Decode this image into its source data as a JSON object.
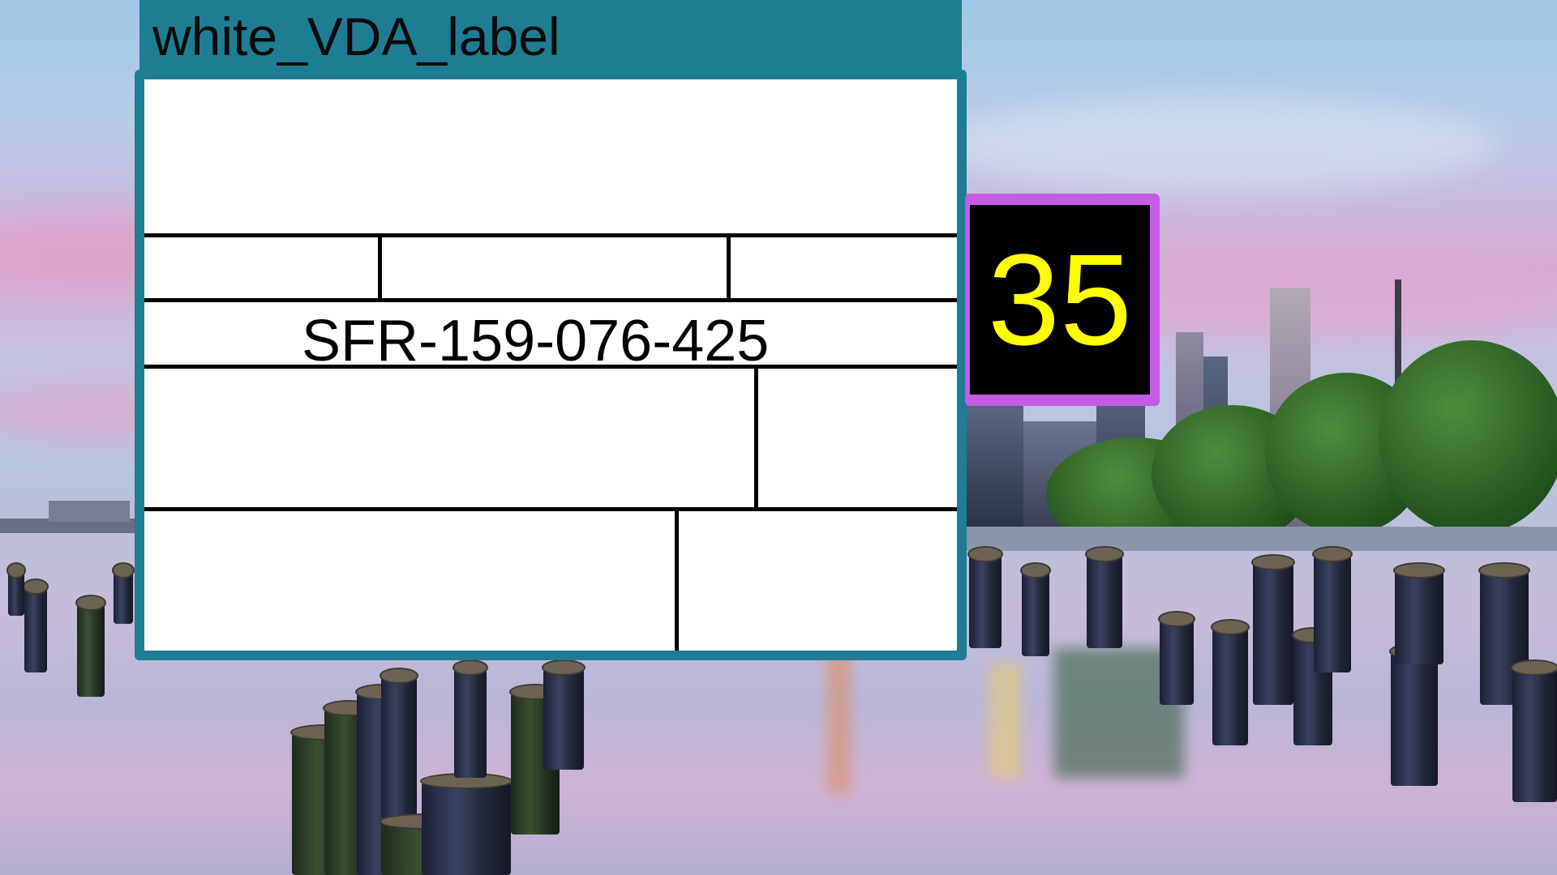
{
  "window": {
    "title": "white_VDA_label"
  },
  "label": {
    "part_number": "SFR-159-076-425"
  },
  "counter": {
    "value": "35"
  },
  "colors": {
    "title_bar": "#1f7d93",
    "counter_border": "#c65be4",
    "counter_text": "#ffff00",
    "label_background": "#ffffff"
  }
}
